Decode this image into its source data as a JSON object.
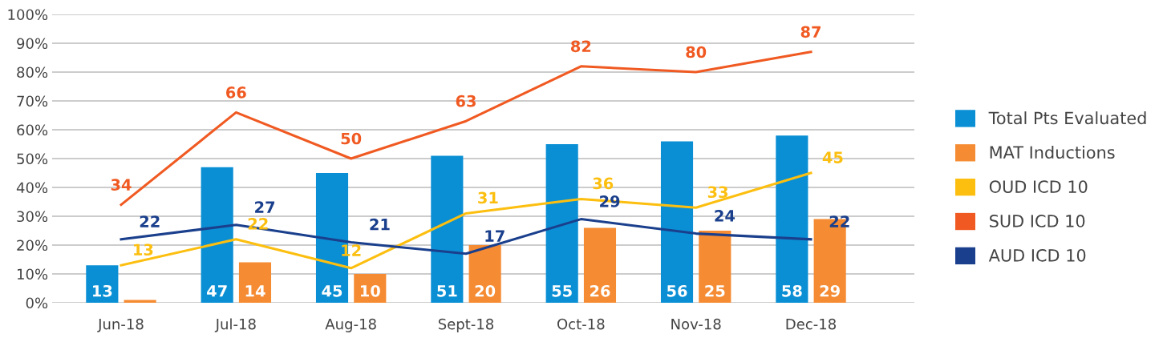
{
  "chart_data": {
    "type": "bar",
    "categories": [
      "Jun-18",
      "Jul-18",
      "Aug-18",
      "Sept-18",
      "Oct-18",
      "Nov-18",
      "Dec-18"
    ],
    "series": [
      {
        "name": "Total Pts Evaluated",
        "color": "#0a8fd4",
        "values": [
          13,
          47,
          45,
          51,
          55,
          56,
          58
        ],
        "value_labels": [
          "13",
          "47",
          "45",
          "51",
          "55",
          "56",
          "58"
        ]
      },
      {
        "name": "MAT Inductions",
        "color": "#f58b33",
        "values": [
          1,
          14,
          10,
          20,
          26,
          25,
          29
        ],
        "value_labels": [
          null,
          "14",
          "10",
          "20",
          "26",
          "25",
          "29"
        ]
      },
      {
        "name": "OUD ICD 10",
        "type": "line",
        "color": "#fcbf10",
        "values": [
          13,
          22,
          12,
          31,
          36,
          33,
          45
        ],
        "value_labels": [
          "13",
          "22",
          "12",
          "31",
          "36",
          "33",
          "45"
        ]
      },
      {
        "name": "SUD ICD 10",
        "type": "line",
        "color": "#f05a22",
        "values": [
          34,
          66,
          50,
          63,
          82,
          80,
          87
        ],
        "value_labels": [
          "34",
          "66",
          "50",
          "63",
          "82",
          "80",
          "87"
        ]
      },
      {
        "name": "AUD ICD 10",
        "type": "line",
        "color": "#1a3f8c",
        "values": [
          22,
          27,
          21,
          17,
          29,
          24,
          22
        ],
        "value_labels": [
          "22",
          "27",
          "21",
          "17",
          "29",
          "24",
          "22"
        ]
      }
    ],
    "ylim": [
      0,
      100
    ],
    "yticks": [
      {
        "value": 0,
        "label": "0%"
      },
      {
        "value": 10,
        "label": "10%"
      },
      {
        "value": 20,
        "label": "20%"
      },
      {
        "value": 30,
        "label": "30%"
      },
      {
        "value": 40,
        "label": "40%"
      },
      {
        "value": 50,
        "label": "50%"
      },
      {
        "value": 60,
        "label": "60%"
      },
      {
        "value": 70,
        "label": "70%"
      },
      {
        "value": 80,
        "label": "80%"
      },
      {
        "value": 90,
        "label": "90%"
      },
      {
        "value": 100,
        "label": "100%"
      }
    ],
    "grid": "y",
    "legend": "right",
    "marker": "none",
    "line_style": "solid"
  }
}
